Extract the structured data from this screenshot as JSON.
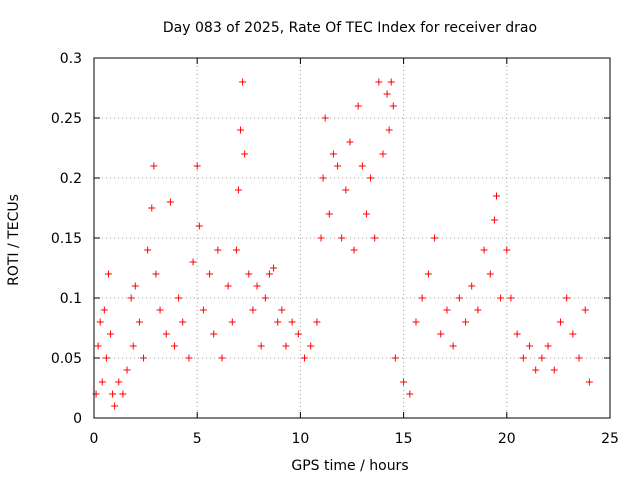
{
  "chart_data": {
    "type": "scatter",
    "title": "Day 083 of 2025, Rate Of TEC Index for receiver drao",
    "xlabel": "GPS time / hours",
    "ylabel": "ROTI / TECUs",
    "xlim": [
      0,
      25
    ],
    "ylim": [
      0,
      0.3
    ],
    "xticks": [
      0,
      5,
      10,
      15,
      20,
      25
    ],
    "yticks": [
      0,
      0.05,
      0.1,
      0.15,
      0.2,
      0.25,
      0.3
    ],
    "xtick_labels": [
      "0",
      "5",
      "10",
      "15",
      "20",
      "25"
    ],
    "ytick_labels": [
      "0",
      "0.05",
      "0.1",
      "0.15",
      "0.2",
      "0.25",
      "0.3"
    ],
    "grid": true,
    "marker": "+",
    "series_color": "#ff0000",
    "series": [
      {
        "name": "ROTI",
        "note": "dense point cloud; points listed are representative samples read from the plot",
        "points": [
          [
            0.1,
            0.02
          ],
          [
            0.2,
            0.06
          ],
          [
            0.3,
            0.08
          ],
          [
            0.4,
            0.03
          ],
          [
            0.5,
            0.09
          ],
          [
            0.6,
            0.05
          ],
          [
            0.7,
            0.12
          ],
          [
            0.8,
            0.07
          ],
          [
            0.9,
            0.02
          ],
          [
            1.0,
            0.01
          ],
          [
            1.2,
            0.03
          ],
          [
            1.4,
            0.02
          ],
          [
            1.6,
            0.04
          ],
          [
            1.8,
            0.1
          ],
          [
            1.9,
            0.06
          ],
          [
            2.0,
            0.11
          ],
          [
            2.2,
            0.08
          ],
          [
            2.4,
            0.05
          ],
          [
            2.6,
            0.14
          ],
          [
            2.8,
            0.175
          ],
          [
            2.9,
            0.21
          ],
          [
            3.0,
            0.12
          ],
          [
            3.2,
            0.09
          ],
          [
            3.5,
            0.07
          ],
          [
            3.7,
            0.18
          ],
          [
            3.9,
            0.06
          ],
          [
            4.1,
            0.1
          ],
          [
            4.3,
            0.08
          ],
          [
            4.6,
            0.05
          ],
          [
            4.8,
            0.13
          ],
          [
            5.0,
            0.21
          ],
          [
            5.1,
            0.16
          ],
          [
            5.3,
            0.09
          ],
          [
            5.6,
            0.12
          ],
          [
            5.8,
            0.07
          ],
          [
            6.0,
            0.14
          ],
          [
            6.2,
            0.05
          ],
          [
            6.5,
            0.11
          ],
          [
            6.7,
            0.08
          ],
          [
            6.9,
            0.14
          ],
          [
            7.0,
            0.19
          ],
          [
            7.1,
            0.24
          ],
          [
            7.2,
            0.28
          ],
          [
            7.3,
            0.22
          ],
          [
            7.5,
            0.12
          ],
          [
            7.7,
            0.09
          ],
          [
            7.9,
            0.11
          ],
          [
            8.1,
            0.06
          ],
          [
            8.3,
            0.1
          ],
          [
            8.5,
            0.12
          ],
          [
            8.7,
            0.125
          ],
          [
            8.9,
            0.08
          ],
          [
            9.1,
            0.09
          ],
          [
            9.3,
            0.06
          ],
          [
            9.6,
            0.08
          ],
          [
            9.9,
            0.07
          ],
          [
            10.2,
            0.05
          ],
          [
            10.5,
            0.06
          ],
          [
            10.8,
            0.08
          ],
          [
            11.0,
            0.15
          ],
          [
            11.1,
            0.2
          ],
          [
            11.2,
            0.25
          ],
          [
            11.4,
            0.17
          ],
          [
            11.6,
            0.22
          ],
          [
            11.8,
            0.21
          ],
          [
            12.0,
            0.15
          ],
          [
            12.2,
            0.19
          ],
          [
            12.4,
            0.23
          ],
          [
            12.6,
            0.14
          ],
          [
            12.8,
            0.26
          ],
          [
            13.0,
            0.21
          ],
          [
            13.2,
            0.17
          ],
          [
            13.4,
            0.2
          ],
          [
            13.6,
            0.15
          ],
          [
            13.8,
            0.28
          ],
          [
            14.0,
            0.22
          ],
          [
            14.2,
            0.27
          ],
          [
            14.3,
            0.24
          ],
          [
            14.4,
            0.28
          ],
          [
            14.5,
            0.26
          ],
          [
            14.6,
            0.05
          ],
          [
            15.0,
            0.03
          ],
          [
            15.3,
            0.02
          ],
          [
            15.6,
            0.08
          ],
          [
            15.9,
            0.1
          ],
          [
            16.2,
            0.12
          ],
          [
            16.5,
            0.15
          ],
          [
            16.8,
            0.07
          ],
          [
            17.1,
            0.09
          ],
          [
            17.4,
            0.06
          ],
          [
            17.7,
            0.1
          ],
          [
            18.0,
            0.08
          ],
          [
            18.3,
            0.11
          ],
          [
            18.6,
            0.09
          ],
          [
            18.9,
            0.14
          ],
          [
            19.2,
            0.12
          ],
          [
            19.4,
            0.165
          ],
          [
            19.5,
            0.185
          ],
          [
            19.7,
            0.1
          ],
          [
            20.0,
            0.14
          ],
          [
            20.2,
            0.1
          ],
          [
            20.5,
            0.07
          ],
          [
            20.8,
            0.05
          ],
          [
            21.1,
            0.06
          ],
          [
            21.4,
            0.04
          ],
          [
            21.7,
            0.05
          ],
          [
            22.0,
            0.06
          ],
          [
            22.3,
            0.04
          ],
          [
            22.6,
            0.08
          ],
          [
            22.9,
            0.1
          ],
          [
            23.2,
            0.07
          ],
          [
            23.5,
            0.05
          ],
          [
            23.8,
            0.09
          ],
          [
            24.0,
            0.03
          ]
        ]
      }
    ]
  }
}
